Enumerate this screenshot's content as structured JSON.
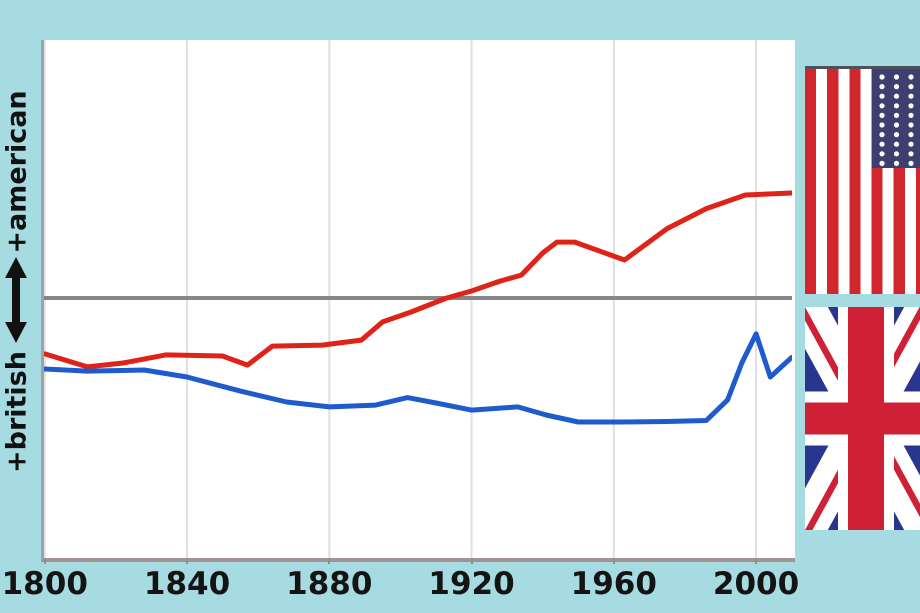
{
  "colors": {
    "background": "#a6dce1",
    "plot_background": "#ffffff",
    "gridline": "#e0e0e0",
    "zero_line": "#868686",
    "axis_border_left": "#9ba3ad",
    "axis_border_bottom": "#a29392",
    "tick_label": "#141414",
    "american_line": "#df2318",
    "british_line": "#1e5cce",
    "us_flag_red": "#d0262c",
    "us_flag_navy": "#3d3f6e",
    "us_flag_white": "#ffffff",
    "uk_flag_navy": "#28378d",
    "uk_flag_red": "#cf2135",
    "flag_top_bar": "#50505a"
  },
  "y_axis": {
    "label_top": "+american",
    "label_bottom": "+british"
  },
  "flags": {
    "top": "united-states-flag",
    "bottom": "united-kingdom-flag"
  },
  "chart_data": {
    "type": "line",
    "title": "",
    "xlabel": "",
    "ylabel": "+british ⟷ +american",
    "x_ticks": [
      1800,
      1840,
      1880,
      1920,
      1960,
      2000
    ],
    "x_range": [
      1800,
      2010
    ],
    "y_range": [
      -1,
      1
    ],
    "zero_line": 0,
    "grid": "vertical-only",
    "legend": "none",
    "series": [
      {
        "name": "american",
        "color_key": "american_line",
        "points": [
          [
            1800,
            -0.215
          ],
          [
            1812,
            -0.265
          ],
          [
            1822,
            -0.25
          ],
          [
            1834,
            -0.219
          ],
          [
            1850,
            -0.223
          ],
          [
            1857,
            -0.258
          ],
          [
            1864,
            -0.185
          ],
          [
            1878,
            -0.181
          ],
          [
            1889,
            -0.162
          ],
          [
            1895,
            -0.092
          ],
          [
            1903,
            -0.054
          ],
          [
            1913,
            0.0
          ],
          [
            1920,
            0.027
          ],
          [
            1928,
            0.065
          ],
          [
            1934,
            0.088
          ],
          [
            1940,
            0.173
          ],
          [
            1944,
            0.215
          ],
          [
            1949,
            0.215
          ],
          [
            1963,
            0.146
          ],
          [
            1975,
            0.267
          ],
          [
            1986,
            0.344
          ],
          [
            1997,
            0.396
          ],
          [
            2010,
            0.404
          ]
        ]
      },
      {
        "name": "british",
        "color_key": "british_line",
        "points": [
          [
            1800,
            -0.273
          ],
          [
            1812,
            -0.281
          ],
          [
            1828,
            -0.277
          ],
          [
            1840,
            -0.304
          ],
          [
            1855,
            -0.358
          ],
          [
            1868,
            -0.4
          ],
          [
            1880,
            -0.419
          ],
          [
            1893,
            -0.412
          ],
          [
            1902,
            -0.383
          ],
          [
            1910,
            -0.404
          ],
          [
            1920,
            -0.431
          ],
          [
            1933,
            -0.419
          ],
          [
            1941,
            -0.45
          ],
          [
            1950,
            -0.477
          ],
          [
            1962,
            -0.477
          ],
          [
            1975,
            -0.475
          ],
          [
            1986,
            -0.471
          ],
          [
            1992,
            -0.392
          ],
          [
            1996,
            -0.25
          ],
          [
            2000,
            -0.138
          ],
          [
            2004,
            -0.304
          ],
          [
            2010,
            -0.229
          ]
        ]
      }
    ]
  }
}
